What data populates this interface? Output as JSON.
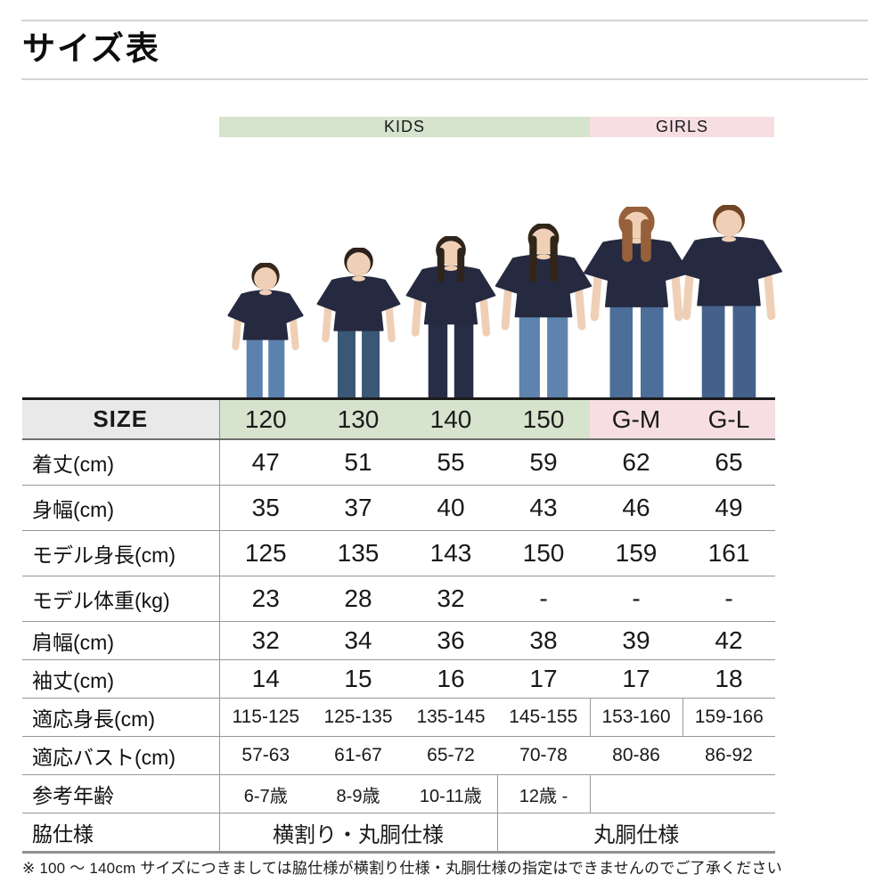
{
  "title": "サイズ表",
  "groups": {
    "kids": "KIDS",
    "girls": "GIRLS"
  },
  "colors": {
    "kids_bg": "#d6e3cd",
    "girls_bg": "#f6dee2",
    "size_bg": "#e9e9e9",
    "shirt_navy": "#262a40",
    "skin": "#efd0b6"
  },
  "figures": [
    {
      "size": "120",
      "person": "boy",
      "hair_color": "#33271e",
      "pants_color": "#5b82ae"
    },
    {
      "size": "130",
      "person": "boy",
      "hair_color": "#2c221b",
      "pants_color": "#3a5876"
    },
    {
      "size": "140",
      "person": "girl",
      "hair_color": "#2e241c",
      "pants_color": "#272d45"
    },
    {
      "size": "150",
      "person": "girl",
      "hair_color": "#322619",
      "pants_color": "#5e83ac"
    },
    {
      "size": "G-M",
      "person": "woman",
      "hair_color": "#96613a",
      "pants_color": "#4d6e98"
    },
    {
      "size": "G-L",
      "person": "woman",
      "hair_color": "#6f4526",
      "pants_color": "#43618b"
    }
  ],
  "table": {
    "size_label": "SIZE",
    "columns": [
      {
        "label": "120",
        "group": "kids"
      },
      {
        "label": "130",
        "group": "kids"
      },
      {
        "label": "140",
        "group": "kids"
      },
      {
        "label": "150",
        "group": "kids"
      },
      {
        "label": "G-M",
        "group": "girls"
      },
      {
        "label": "G-L",
        "group": "girls"
      }
    ],
    "rows": [
      {
        "label": "着丈(cm)",
        "tall": true,
        "cells": [
          {
            "t": "47"
          },
          {
            "t": "51"
          },
          {
            "t": "55"
          },
          {
            "t": "59"
          },
          {
            "t": "62"
          },
          {
            "t": "65"
          }
        ]
      },
      {
        "label": "身幅(cm)",
        "tall": true,
        "cells": [
          {
            "t": "35"
          },
          {
            "t": "37"
          },
          {
            "t": "40"
          },
          {
            "t": "43"
          },
          {
            "t": "46"
          },
          {
            "t": "49"
          }
        ]
      },
      {
        "label": "モデル身長(cm)",
        "tall": true,
        "cells": [
          {
            "t": "125"
          },
          {
            "t": "135"
          },
          {
            "t": "143"
          },
          {
            "t": "150"
          },
          {
            "t": "159"
          },
          {
            "t": "161"
          }
        ]
      },
      {
        "label": "モデル体重(kg)",
        "tall": true,
        "cells": [
          {
            "t": "23"
          },
          {
            "t": "28"
          },
          {
            "t": "32"
          },
          {
            "t": "-"
          },
          {
            "t": "-"
          },
          {
            "t": "-"
          }
        ]
      },
      {
        "label": "肩幅(cm)",
        "cells": [
          {
            "t": "32"
          },
          {
            "t": "34"
          },
          {
            "t": "36"
          },
          {
            "t": "38"
          },
          {
            "t": "39"
          },
          {
            "t": "42"
          }
        ]
      },
      {
        "label": "袖丈(cm)",
        "cells": [
          {
            "t": "14"
          },
          {
            "t": "15"
          },
          {
            "t": "16"
          },
          {
            "t": "17"
          },
          {
            "t": "17"
          },
          {
            "t": "18"
          }
        ]
      },
      {
        "label": "適応身長(cm)",
        "small_text": true,
        "cells": [
          {
            "t": "115-125"
          },
          {
            "t": "125-135"
          },
          {
            "t": "135-145"
          },
          {
            "t": "145-155"
          },
          {
            "t": "153-160",
            "bl": true
          },
          {
            "t": "159-166",
            "bl": true
          }
        ]
      },
      {
        "label": "適応バスト(cm)",
        "small_text": true,
        "cells": [
          {
            "t": "57-63"
          },
          {
            "t": "61-67"
          },
          {
            "t": "65-72"
          },
          {
            "t": "70-78"
          },
          {
            "t": "80-86"
          },
          {
            "t": "86-92"
          }
        ]
      },
      {
        "label": "参考年齢",
        "age": true,
        "cells": [
          {
            "t": "6-7歳"
          },
          {
            "t": "8-9歳"
          },
          {
            "t": "10-11歳"
          },
          {
            "t": "12歳 -",
            "bl": true,
            "br": true
          },
          {
            "t": ""
          },
          {
            "t": ""
          }
        ]
      },
      {
        "label": "脇仕様",
        "spec": true,
        "cells": [
          {
            "t": "横割り・丸胴仕様",
            "span": 3
          },
          {
            "t": "丸胴仕様",
            "span": 3,
            "bl": true
          }
        ]
      }
    ]
  },
  "footnote": "※ 100 ～ 140cm サイズにつきましては脇仕様が横割り仕様・丸胴仕様の指定はできませんのでご了承ください"
}
